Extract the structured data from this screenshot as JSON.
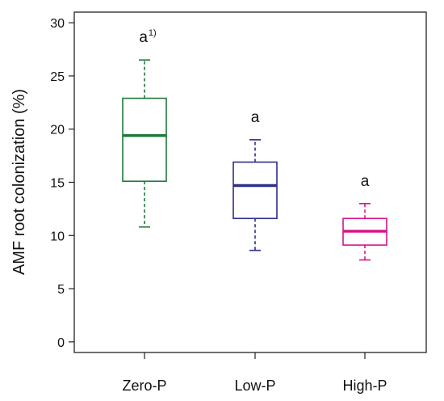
{
  "chart_data": {
    "type": "box",
    "title": "",
    "xlabel": "",
    "ylabel": "AMF root colonization (%)",
    "ylim": [
      -1,
      31
    ],
    "yticks": [
      0,
      5,
      10,
      15,
      20,
      25,
      30
    ],
    "categories": [
      "Zero-P",
      "Low-P",
      "High-P"
    ],
    "boxes": [
      {
        "category": "Zero-P",
        "whisker_low": 10.8,
        "q1": 15.1,
        "median": 19.4,
        "q3": 22.9,
        "whisker_high": 26.5,
        "color": "#1e7a3c",
        "letter": "a",
        "letter_superscript": "1)"
      },
      {
        "category": "Low-P",
        "whisker_low": 8.6,
        "q1": 11.6,
        "median": 14.7,
        "q3": 16.9,
        "whisker_high": 19.0,
        "color": "#2b2e8a",
        "letter": "a",
        "letter_superscript": ""
      },
      {
        "category": "High-P",
        "whisker_low": 7.7,
        "q1": 9.1,
        "median": 10.4,
        "q3": 11.6,
        "whisker_high": 13.0,
        "color": "#d6148c",
        "letter": "a",
        "letter_superscript": ""
      }
    ],
    "grid": false,
    "legend": "none"
  }
}
